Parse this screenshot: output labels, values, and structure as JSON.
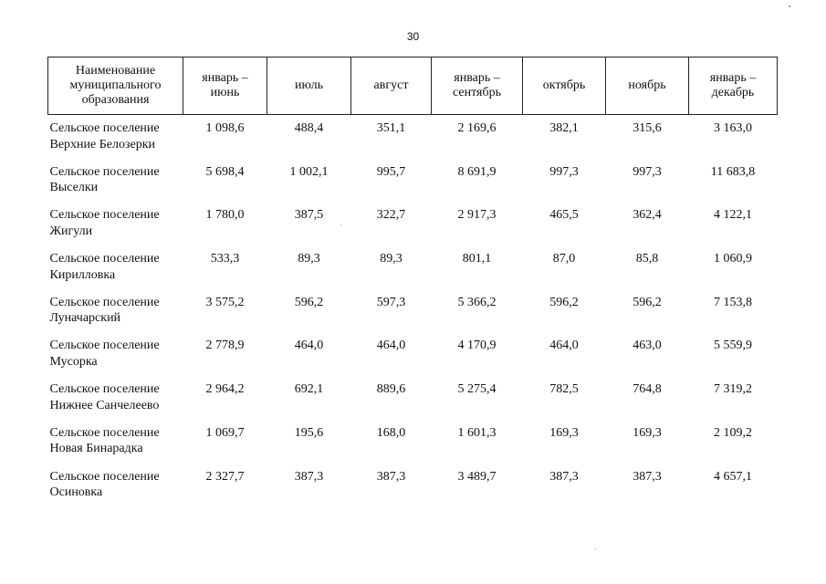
{
  "page_number": "30",
  "table": {
    "headers": {
      "name": [
        "Наименование",
        "муниципального",
        "образования"
      ],
      "columns": [
        [
          "январь –",
          "июнь"
        ],
        [
          "июль"
        ],
        [
          "август"
        ],
        [
          "январь –",
          "сентябрь"
        ],
        [
          "октябрь"
        ],
        [
          "ноябрь"
        ],
        [
          "январь –",
          "декабрь"
        ]
      ]
    },
    "rows": [
      {
        "name": [
          "Сельское поселение",
          "Верхние Белозерки"
        ],
        "values": [
          "1 098,6",
          "488,4",
          "351,1",
          "2 169,6",
          "382,1",
          "315,6",
          "3 163,0"
        ]
      },
      {
        "name": [
          "Сельское поселение",
          "Выселки"
        ],
        "values": [
          "5 698,4",
          "1 002,1",
          "995,7",
          "8 691,9",
          "997,3",
          "997,3",
          "11 683,8"
        ]
      },
      {
        "name": [
          "Сельское поселение",
          "Жигули"
        ],
        "values": [
          "1 780,0",
          "387,5",
          "322,7",
          "2 917,3",
          "465,5",
          "362,4",
          "4 122,1"
        ]
      },
      {
        "name": [
          "Сельское поселение",
          "Кирилловка"
        ],
        "values": [
          "533,3",
          "89,3",
          "89,3",
          "801,1",
          "87,0",
          "85,8",
          "1 060,9"
        ]
      },
      {
        "name": [
          "Сельское поселение",
          "Луначарский"
        ],
        "values": [
          "3 575,2",
          "596,2",
          "597,3",
          "5 366,2",
          "596,2",
          "596,2",
          "7 153,8"
        ]
      },
      {
        "name": [
          "Сельское поселение",
          "Мусорка"
        ],
        "values": [
          "2 778,9",
          "464,0",
          "464,0",
          "4 170,9",
          "464,0",
          "463,0",
          "5 559,9"
        ]
      },
      {
        "name": [
          "Сельское поселение",
          "Нижнее Санчелеево"
        ],
        "values": [
          "2 964,2",
          "692,1",
          "889,6",
          "5 275,4",
          "782,5",
          "764,8",
          "7 319,2"
        ]
      },
      {
        "name": [
          "Сельское поселение",
          "Новая Бинарадка"
        ],
        "values": [
          "1 069,7",
          "195,6",
          "168,0",
          "1 601,3",
          "169,3",
          "169,3",
          "2 109,2"
        ]
      },
      {
        "name": [
          "Сельское поселение",
          "Осиновка"
        ],
        "values": [
          "2 327,7",
          "387,3",
          "387,3",
          "3 489,7",
          "387,3",
          "387,3",
          "4 657,1"
        ]
      }
    ]
  }
}
